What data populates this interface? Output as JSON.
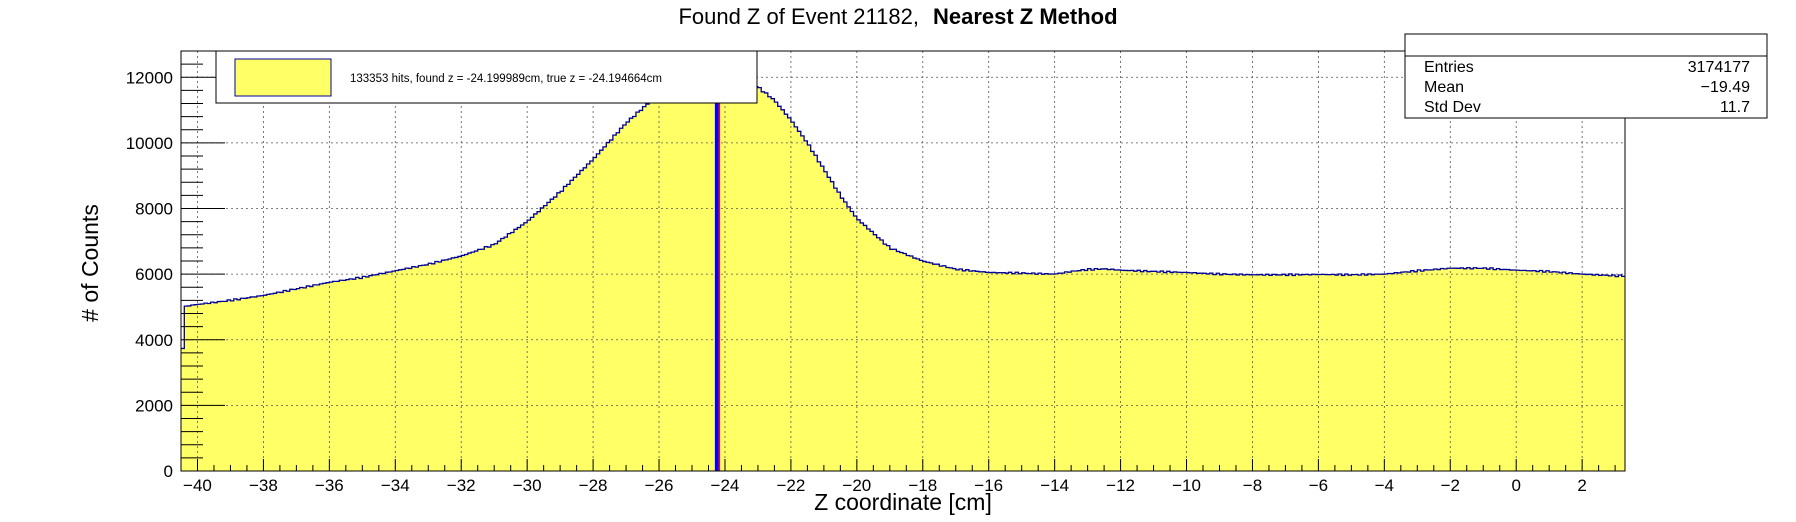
{
  "title": {
    "normal": "Found Z of Event 21182,",
    "bold": "Nearest Z Method"
  },
  "legend": {
    "text": "133353 hits, found z = -24.199989cm, true z = -24.194664cm",
    "fill_color": "#ffff66"
  },
  "stats": {
    "rows": [
      {
        "label": "Entries",
        "value": "3174177"
      },
      {
        "label": "Mean",
        "value": "−19.49"
      },
      {
        "label": "Std Dev",
        "value": "11.7"
      }
    ]
  },
  "colors": {
    "hist_fill": "#ffff66",
    "hist_line": "#000099",
    "found_z_line": "#0000ff",
    "true_z_line": "#ff0000",
    "grid": "#555555"
  },
  "chart_data": {
    "type": "histogram",
    "xlabel": "Z coordinate [cm]",
    "ylabel": "# of Counts",
    "xlim": [
      -40.5,
      3.3
    ],
    "ylim": [
      0,
      12800
    ],
    "grid": true,
    "x_ticks": [
      -40,
      -38,
      -36,
      -34,
      -32,
      -30,
      -28,
      -26,
      -24,
      -22,
      -20,
      -18,
      -16,
      -14,
      -12,
      -10,
      -8,
      -6,
      -4,
      -2,
      0,
      2
    ],
    "y_ticks": [
      0,
      2000,
      4000,
      6000,
      8000,
      10000,
      12000
    ],
    "found_z": -24.199989,
    "true_z": -24.194664,
    "profile": {
      "x": [
        -40.5,
        -40.4,
        -40.2,
        -39,
        -38,
        -37,
        -36,
        -35,
        -34,
        -33,
        -32,
        -31,
        -30,
        -29,
        -28,
        -27,
        -26,
        -25,
        -24.6,
        -24,
        -23.5,
        -23,
        -22.5,
        -22,
        -21.5,
        -21,
        -20.5,
        -20,
        -19,
        -18,
        -17,
        -16.5,
        -16,
        -15,
        -14,
        -13.5,
        -13,
        -12.5,
        -12,
        -11,
        -10,
        -9,
        -8,
        -7,
        -6,
        -5,
        -4,
        -3,
        -2,
        -1,
        0,
        1,
        2,
        3,
        3.25,
        3.3
      ],
      "y": [
        2500,
        5000,
        5050,
        5200,
        5350,
        5550,
        5750,
        5900,
        6100,
        6300,
        6550,
        6900,
        7600,
        8500,
        9500,
        10600,
        11500,
        12100,
        12250,
        12200,
        12000,
        11700,
        11300,
        10700,
        10000,
        9200,
        8400,
        7700,
        6800,
        6400,
        6150,
        6100,
        6050,
        6030,
        6000,
        6080,
        6140,
        6160,
        6120,
        6080,
        6050,
        6000,
        5980,
        5980,
        5990,
        5980,
        6000,
        6100,
        6180,
        6180,
        6120,
        6080,
        6000,
        5950,
        5950,
        3000
      ]
    }
  }
}
